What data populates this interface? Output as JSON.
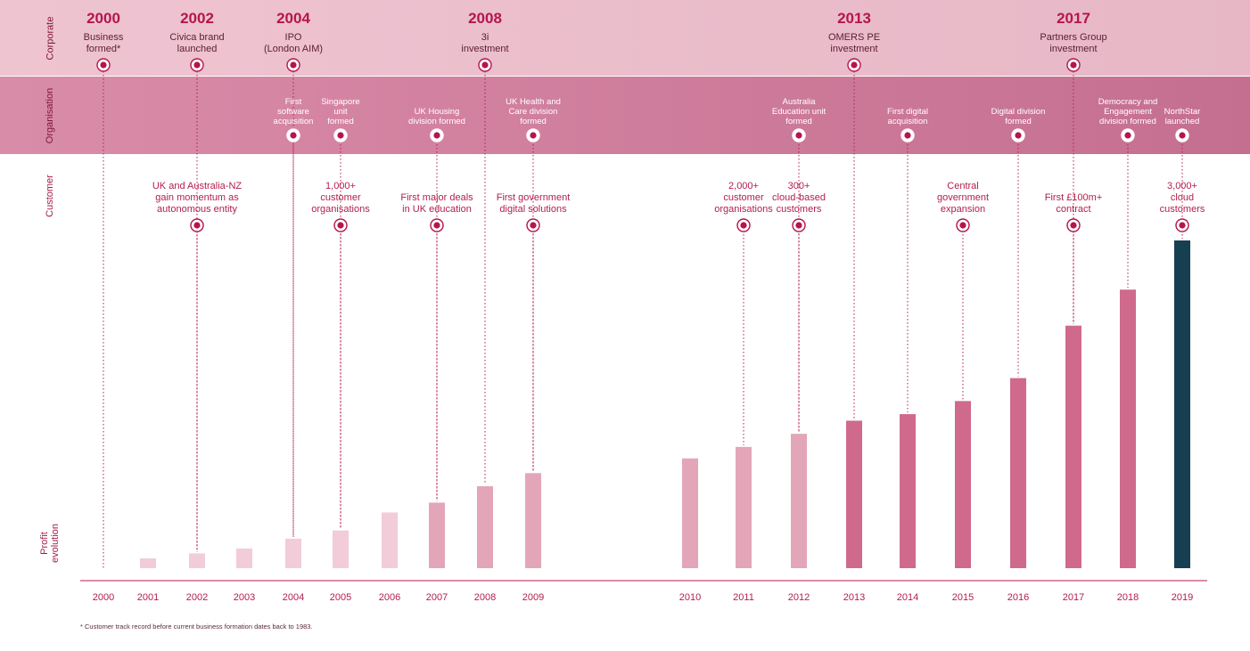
{
  "rows": {
    "corporate": "Corporate",
    "organisation": "Organisation",
    "customer": "Customer",
    "profit": "Profit\nevolution"
  },
  "corporate_events": [
    {
      "year": "2000",
      "text": "Business\nformed*"
    },
    {
      "year": "2002",
      "text": "Civica brand\nlaunched"
    },
    {
      "year": "2004",
      "text": "IPO\n(London AIM)"
    },
    {
      "year": "2008",
      "text": "3i\ninvestment"
    },
    {
      "year": "2013",
      "text": "OMERS PE\ninvestment"
    },
    {
      "year": "2017",
      "text": "Partners Group\ninvestment"
    }
  ],
  "organisation_events": [
    {
      "year": "2004",
      "text": "First\nsoftware\nacquisition"
    },
    {
      "year": "2005",
      "text": "Singapore\nunit\nformed"
    },
    {
      "year": "2007",
      "text": "UK Housing\ndivision formed"
    },
    {
      "year": "2009",
      "text": "UK Health and\nCare division\nformed"
    },
    {
      "year": "2012",
      "text": "Australia\nEducation unit\nformed"
    },
    {
      "year": "2014",
      "text": "First digital\nacquisition"
    },
    {
      "year": "2016",
      "text": "Digital division\nformed"
    },
    {
      "year": "2018",
      "text": "Democracy and\nEngagement\ndivision formed"
    },
    {
      "year": "2019",
      "text": "NorthStar\nlaunched"
    }
  ],
  "customer_events": [
    {
      "year": "2002",
      "text": "UK and Australia-NZ\ngain momentum as\nautonomous entity"
    },
    {
      "year": "2005",
      "text": "1,000+\ncustomer\norganisations"
    },
    {
      "year": "2007",
      "text": "First major deals\nin UK education"
    },
    {
      "year": "2009",
      "text": "First government\ndigital solutions"
    },
    {
      "year": "2011",
      "text": "2,000+\ncustomer\norganisations"
    },
    {
      "year": "2012",
      "text": "300+\ncloud-based\ncustomers"
    },
    {
      "year": "2015",
      "text": "Central\ngovernment\nexpansion"
    },
    {
      "year": "2017",
      "text": "First £100m+\ncontract"
    },
    {
      "year": "2019",
      "text": "3,000+\ncloud\ncustomers"
    }
  ],
  "footnote": "* Customer track record before current business formation dates back to 1983.",
  "colors": {
    "accent": "#b31e4b",
    "bar_light": "#f2ccd8",
    "bar_mid": "#e3a6b9",
    "bar_strong": "#cf6a8d",
    "bar_highlight": "#173f52"
  },
  "chart_data": {
    "type": "bar",
    "categories": [
      "2000",
      "2001",
      "2002",
      "2003",
      "2004",
      "2005",
      "2006",
      "2007",
      "2008",
      "2009",
      "2010",
      "2011",
      "2012",
      "2013",
      "2014",
      "2015",
      "2016",
      "2017",
      "2018",
      "2019"
    ],
    "values": [
      0,
      3,
      4.5,
      6,
      9,
      11.5,
      17,
      20,
      25,
      29,
      33.5,
      37,
      41,
      45,
      47,
      51,
      58,
      74,
      85,
      100
    ],
    "ylim": [
      0,
      100
    ],
    "ylabel": "Profit\nevolution",
    "grid": false,
    "title": ""
  }
}
